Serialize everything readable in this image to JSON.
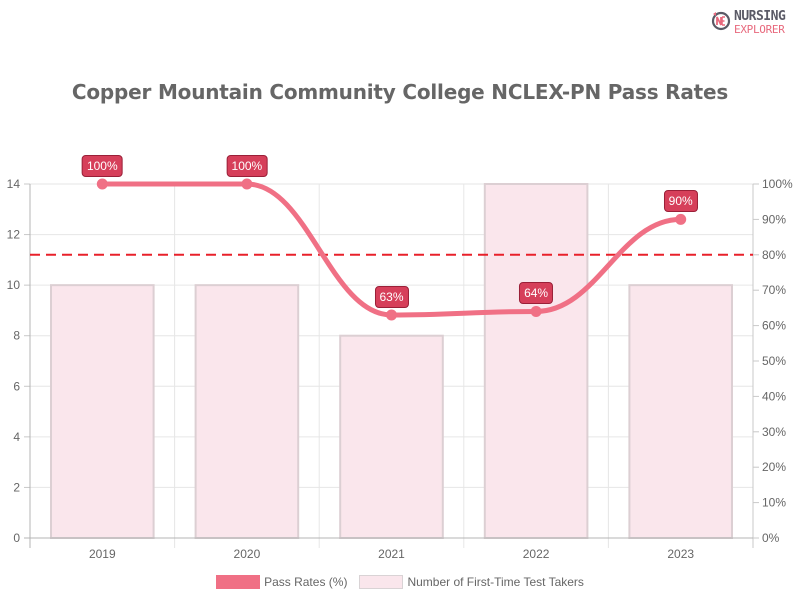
{
  "logo": {
    "line1": "NURSING",
    "line2": "EXPLORER",
    "mark": "NE"
  },
  "title": "Copper Mountain Community College NCLEX-PN Pass Rates",
  "legend": [
    {
      "label": "Pass Rates (%)",
      "color": "#f07085"
    },
    {
      "label": "Number of First-Time Test Takers",
      "color": "#fae6ec"
    }
  ],
  "chart_data": {
    "type": "bar",
    "title": "Copper Mountain Community College NCLEX-PN Pass Rates",
    "categories": [
      "2019",
      "2020",
      "2021",
      "2022",
      "2023"
    ],
    "series": [
      {
        "name": "Number of First-Time Test Takers",
        "type": "bar",
        "axis": "left",
        "values": [
          10,
          10,
          8,
          14,
          10
        ],
        "color": "#fae6ec"
      },
      {
        "name": "Pass Rates (%)",
        "type": "line",
        "axis": "right",
        "values": [
          100,
          100,
          63,
          64,
          90
        ],
        "labels": [
          "100%",
          "100%",
          "63%",
          "64%",
          "90%"
        ],
        "color": "#f07085"
      }
    ],
    "reference_line": {
      "value": 80,
      "axis": "right",
      "style": "dashed",
      "color": "#e8202a"
    },
    "left_axis": {
      "ylim": [
        0,
        14
      ],
      "ticks": [
        "0",
        "2",
        "4",
        "6",
        "8",
        "10",
        "12",
        "14"
      ]
    },
    "right_axis": {
      "ylim": [
        0,
        100
      ],
      "ticks": [
        "0%",
        "10%",
        "20%",
        "30%",
        "40%",
        "50%",
        "60%",
        "70%",
        "80%",
        "90%",
        "100%"
      ]
    },
    "xlabel": "",
    "ylabel": "",
    "grid": true,
    "legend_position": "bottom"
  }
}
